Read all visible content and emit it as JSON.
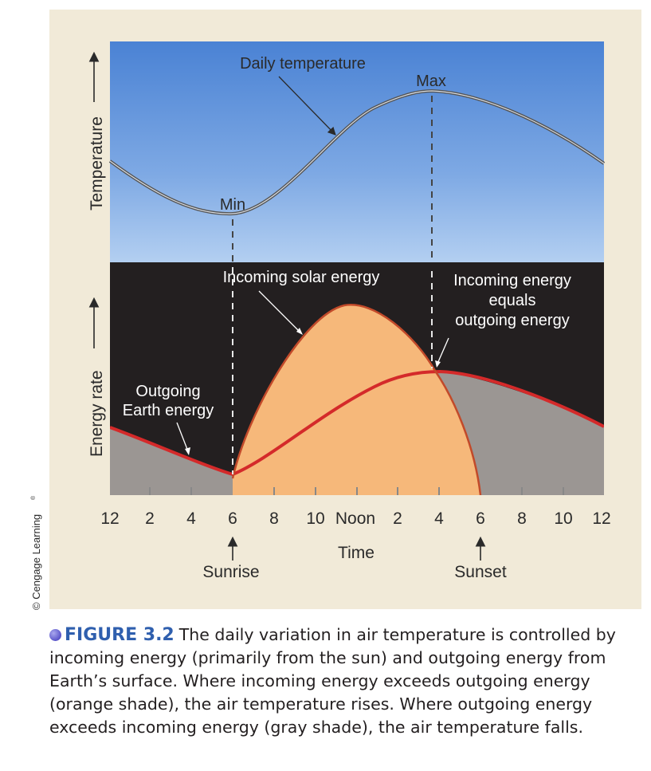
{
  "figure": {
    "credit": "© Cengage Learning",
    "credit_mark": "®",
    "top_panel": {
      "axis_label": "Temperature",
      "curve_label": "Daily temperature",
      "min_label": "Min",
      "max_label": "Max"
    },
    "bottom_panel": {
      "axis_label": "Energy rate",
      "solar_label": "Incoming solar energy",
      "outgoing_label_line1": "Outgoing",
      "outgoing_label_line2": "Earth energy",
      "equal_label_line1": "Incoming energy",
      "equal_label_line2": "equals",
      "equal_label_line3": "outgoing energy"
    },
    "x_axis": {
      "title": "Time",
      "ticks": [
        "12",
        "2",
        "4",
        "6",
        "8",
        "10",
        "Noon",
        "2",
        "4",
        "6",
        "8",
        "10",
        "12"
      ],
      "sunrise_label": "Sunrise",
      "sunset_label": "Sunset"
    },
    "colors": {
      "frame": "#f1ead8",
      "sky_top": "#4f86d6",
      "sky_bottom": "#a7c6ee",
      "night": "#231f20",
      "incoming_fill": "#f6b87a",
      "outgoing_fill": "#9b9693",
      "outgoing_line": "#d42a2a",
      "caption_accent": "#2f5fae"
    }
  },
  "caption": {
    "figure_number": "FIGURE 3.2",
    "text": "The daily variation in air temperature is controlled by incoming energy (primarily from the sun) and outgoing energy from Earth’s surface. Where incoming energy exceeds outgoing energy (orange shade), the air temperature rises. Where outgoing energy exceeds incoming energy (gray shade), the air temperature falls."
  }
}
